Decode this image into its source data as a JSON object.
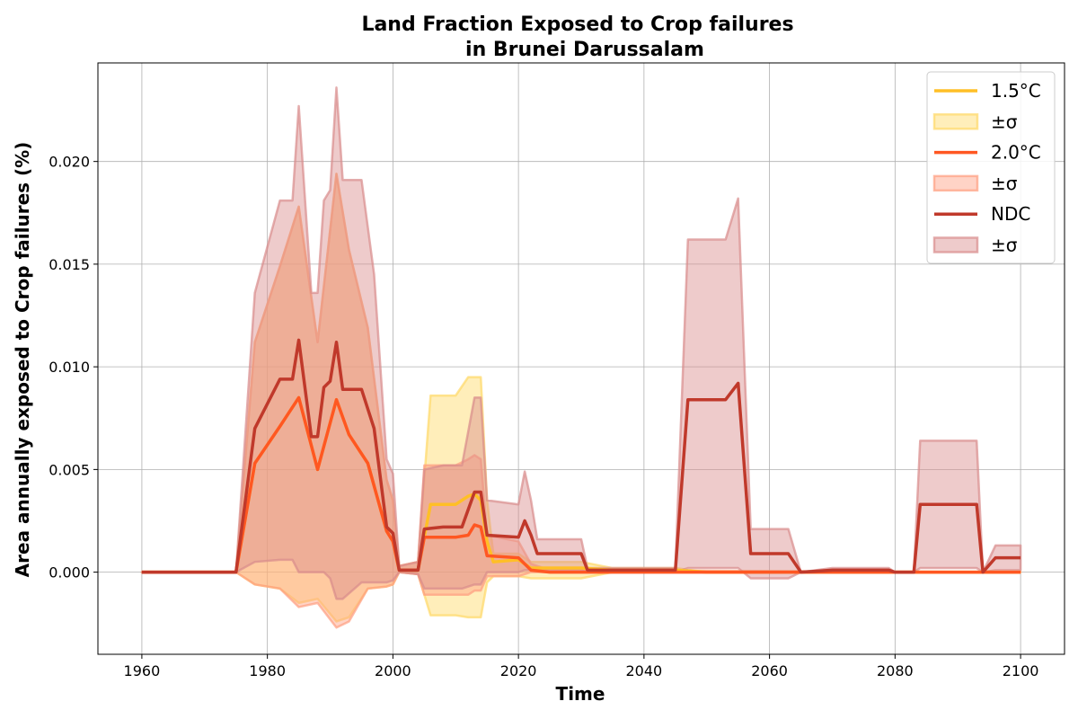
{
  "chart_data": {
    "type": "line",
    "title_line1": "Land Fraction Exposed to Crop failures",
    "title_line2": "in Brunei Darussalam",
    "xlabel": "Time",
    "ylabel": "Area annually exposed to Crop failures (%)",
    "xlim": [
      1953,
      2107
    ],
    "ylim": [
      -0.004,
      0.0248
    ],
    "xticks": [
      1960,
      1980,
      2000,
      2020,
      2040,
      2060,
      2080,
      2100
    ],
    "yticks": [
      0.0,
      0.005,
      0.01,
      0.015,
      0.02
    ],
    "ytick_labels": [
      "0.000",
      "0.005",
      "0.010",
      "0.015",
      "0.020"
    ],
    "grid": true,
    "legend_position": "top-right",
    "legend": [
      {
        "label": "1.5°C",
        "kind": "line",
        "series": 0
      },
      {
        "label": "±σ",
        "kind": "band",
        "series": 0
      },
      {
        "label": "2.0°C",
        "kind": "line",
        "series": 1
      },
      {
        "label": "±σ",
        "kind": "band",
        "series": 1
      },
      {
        "label": "NDC",
        "kind": "line",
        "series": 2
      },
      {
        "label": "±σ",
        "kind": "band",
        "series": 2
      }
    ],
    "series": [
      {
        "name": "1.5°C",
        "color": "#ffbf26",
        "band_color": "#ffd966",
        "x": [
          1960,
          1975,
          1978,
          1982,
          1985,
          1988,
          1991,
          1993,
          1996,
          1999,
          2000,
          2001,
          2004,
          2006,
          2010,
          2012,
          2013,
          2014,
          2015,
          2016,
          2020,
          2022,
          2025,
          2030,
          2035,
          2040,
          2045,
          2050,
          2100
        ],
        "mean": [
          0,
          0,
          0.0053,
          0.0071,
          0.0085,
          0.005,
          0.0084,
          0.0067,
          0.0053,
          0.002,
          0.0015,
          0.0001,
          0.0001,
          0.0033,
          0.0033,
          0.0037,
          0.0038,
          0.0035,
          0.0015,
          0.0005,
          0.0006,
          0.0002,
          0.0002,
          0.0002,
          0.0001,
          0.0001,
          0.0001,
          0,
          0
        ],
        "upper": [
          0,
          0,
          0.0112,
          0.0149,
          0.0178,
          0.0112,
          0.0194,
          0.0157,
          0.0119,
          0.0045,
          0.0035,
          0.0003,
          0.0005,
          0.0086,
          0.0086,
          0.0095,
          0.0095,
          0.0095,
          0.0035,
          0.0009,
          0.0009,
          0.0005,
          0.0005,
          0.0005,
          0.0002,
          0.0002,
          0.0002,
          0,
          0
        ],
        "lower": [
          0,
          0,
          -0.0006,
          -0.0008,
          -0.0015,
          -0.0013,
          -0.0024,
          -0.0022,
          -0.0008,
          -0.0007,
          -0.0006,
          0,
          -0.0001,
          -0.0021,
          -0.0021,
          -0.0022,
          -0.0022,
          -0.0022,
          -0.0005,
          -0.0002,
          -0.0002,
          -0.0003,
          -0.0003,
          -0.0003,
          0,
          0,
          0,
          0,
          0
        ]
      },
      {
        "name": "2.0°C",
        "color": "#ff5722",
        "band_color": "#ff9e80",
        "x": [
          1960,
          1975,
          1978,
          1982,
          1985,
          1988,
          1991,
          1993,
          1996,
          1999,
          2000,
          2001,
          2004,
          2005,
          2010,
          2012,
          2013,
          2014,
          2015,
          2020,
          2022,
          2025,
          2030,
          2100
        ],
        "mean": [
          0,
          0,
          0.0053,
          0.0071,
          0.0085,
          0.005,
          0.0084,
          0.0067,
          0.0053,
          0.002,
          0.0015,
          0.0001,
          0.0001,
          0.0017,
          0.0017,
          0.0018,
          0.0023,
          0.0022,
          0.0008,
          0.0007,
          0.0001,
          0,
          0,
          0
        ],
        "upper": [
          0,
          0,
          0.0112,
          0.0149,
          0.0178,
          0.0112,
          0.0194,
          0.0157,
          0.0119,
          0.0045,
          0.0035,
          0.0003,
          0.0005,
          0.0052,
          0.0052,
          0.0055,
          0.0057,
          0.0055,
          0.0018,
          0.0015,
          0.0004,
          0.0001,
          0.0001,
          0
        ],
        "lower": [
          0,
          0,
          -0.0006,
          -0.0008,
          -0.0017,
          -0.0015,
          -0.0027,
          -0.0024,
          -0.0008,
          -0.0007,
          -0.0006,
          0,
          -0.0001,
          -0.0011,
          -0.0011,
          -0.0011,
          -0.0009,
          -0.0009,
          -0.0002,
          -0.0002,
          0,
          0,
          0,
          0
        ]
      },
      {
        "name": "NDC",
        "color": "#c0392b",
        "band_color": "#d98c8c",
        "x": [
          1960,
          1975,
          1978,
          1982,
          1984,
          1985,
          1987,
          1988,
          1989,
          1990,
          1991,
          1992,
          1995,
          1997,
          1999,
          2000,
          2001,
          2004,
          2005,
          2008,
          2011,
          2013,
          2014,
          2015,
          2020,
          2021,
          2022,
          2023,
          2026,
          2030,
          2031,
          2035,
          2040,
          2045,
          2047,
          2050,
          2053,
          2055,
          2057,
          2060,
          2063,
          2065,
          2070,
          2075,
          2079,
          2080,
          2083,
          2084,
          2088,
          2090,
          2093,
          2094,
          2096,
          2100
        ],
        "mean": [
          0,
          0,
          0.007,
          0.0094,
          0.0094,
          0.0113,
          0.0066,
          0.0066,
          0.009,
          0.0093,
          0.0112,
          0.0089,
          0.0089,
          0.007,
          0.0022,
          0.0019,
          0.0001,
          0.0001,
          0.0021,
          0.0022,
          0.0022,
          0.0039,
          0.0039,
          0.0018,
          0.0017,
          0.0025,
          0.0018,
          0.0009,
          0.0009,
          0.0009,
          0.0001,
          0.0001,
          0.0001,
          0.0001,
          0.0084,
          0.0084,
          0.0084,
          0.0092,
          0.0009,
          0.0009,
          0.0009,
          0,
          0.0001,
          0.0001,
          0.0001,
          0,
          0,
          0.0033,
          0.0033,
          0.0033,
          0.0033,
          0,
          0.0007,
          0.0007
        ],
        "upper": [
          0,
          0,
          0.0136,
          0.0181,
          0.0181,
          0.0227,
          0.0136,
          0.0136,
          0.0181,
          0.0186,
          0.0236,
          0.0191,
          0.0191,
          0.0145,
          0.0055,
          0.0048,
          0.0003,
          0.0005,
          0.005,
          0.0052,
          0.0052,
          0.0085,
          0.0085,
          0.0035,
          0.0033,
          0.0049,
          0.0035,
          0.0016,
          0.0016,
          0.0016,
          0.0002,
          0.0002,
          0.0002,
          0.0002,
          0.0162,
          0.0162,
          0.0162,
          0.0182,
          0.0021,
          0.0021,
          0.0021,
          0,
          0.0002,
          0.0002,
          0.0002,
          0,
          0,
          0.0064,
          0.0064,
          0.0064,
          0.0064,
          0,
          0.0013,
          0.0013
        ],
        "lower": [
          0,
          0,
          0.0005,
          0.0006,
          0.0006,
          0.0,
          0,
          0,
          0.0,
          -0.0003,
          -0.0013,
          -0.0013,
          -0.0005,
          -0.0005,
          -0.0005,
          -0.0004,
          0,
          -0.0001,
          -0.0008,
          -0.0008,
          -0.0008,
          -0.0006,
          -0.0006,
          0,
          0.0,
          0.0001,
          0.0001,
          0.0001,
          0.0001,
          0.0001,
          0,
          0,
          0,
          0,
          0.0002,
          0.0002,
          0.0002,
          0.0002,
          -0.0003,
          -0.0003,
          -0.0003,
          0,
          0,
          0,
          0,
          0,
          0,
          0.0002,
          0.0002,
          0.0002,
          0.0002,
          0,
          0.0001,
          0.0001
        ]
      }
    ]
  }
}
